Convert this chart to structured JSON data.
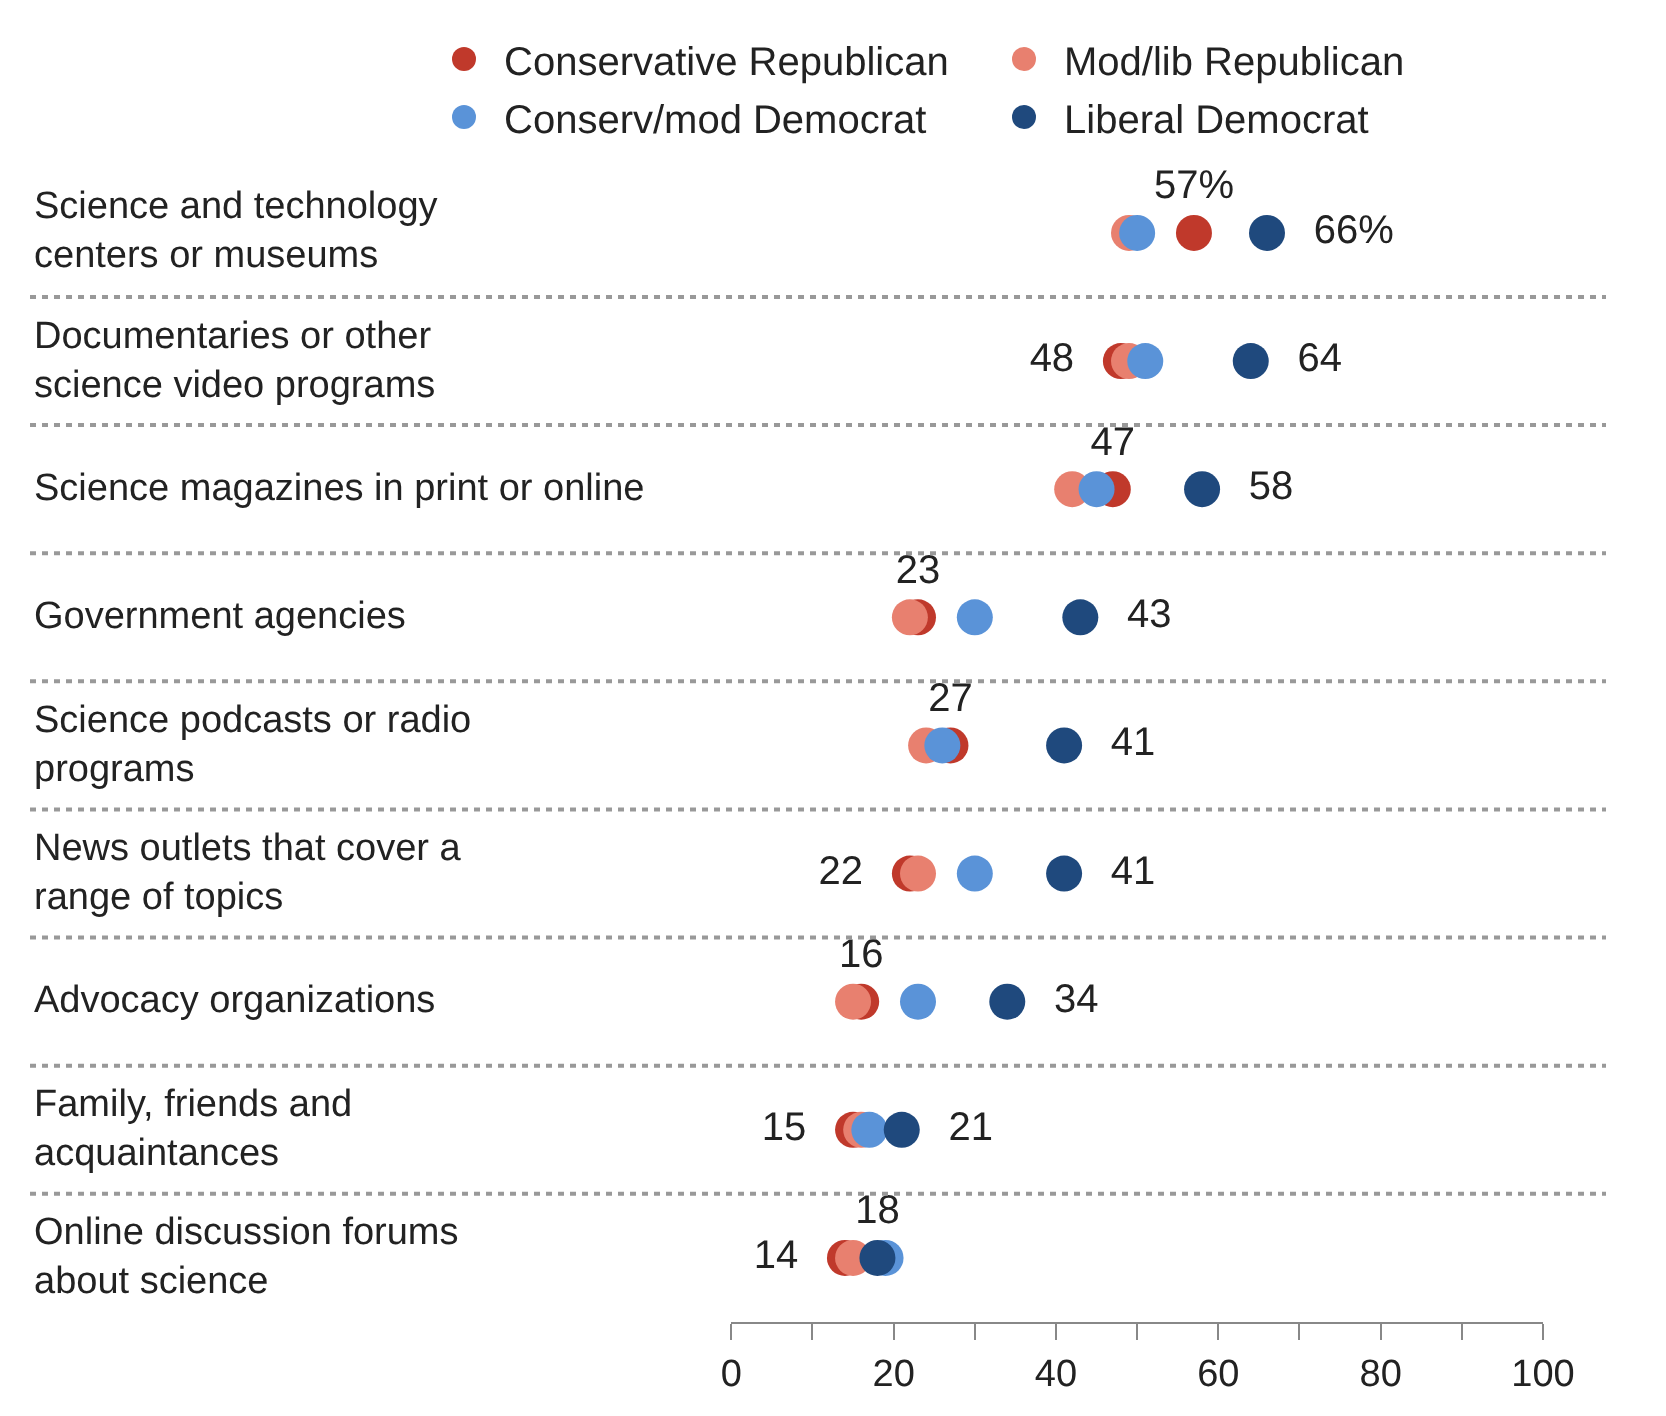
{
  "chart_data": {
    "type": "scatter",
    "categories": [
      "Science and technology\ncenters or museums",
      "Documentaries or other\nscience video programs",
      "Science magazines in print or online",
      "Government agencies",
      "Science podcasts or radio\nprograms",
      "News outlets that cover a\nrange of topics",
      "Advocacy organizations",
      "Family, friends and\nacquaintances",
      "Online discussion forums\nabout science"
    ],
    "series": [
      {
        "name": "Conservative Republican",
        "color": "#c0392b",
        "values": [
          57,
          48,
          47,
          23,
          27,
          22,
          16,
          15,
          14
        ],
        "value_labels": [
          "57%",
          "48",
          "47",
          "23",
          "27",
          "22",
          "16",
          "15",
          "14"
        ]
      },
      {
        "name": "Mod/lib Republican",
        "color": "#e8806f",
        "values": [
          49,
          49,
          42,
          22,
          24,
          23,
          15,
          16,
          15
        ]
      },
      {
        "name": "Conserv/mod Democrat",
        "color": "#5a93d8",
        "values": [
          50,
          51,
          45,
          30,
          26,
          30,
          23,
          17,
          19
        ]
      },
      {
        "name": "Liberal Democrat",
        "color": "#1f497d",
        "values": [
          66,
          64,
          58,
          43,
          41,
          41,
          34,
          21,
          18
        ],
        "value_labels": [
          "66%",
          "64",
          "58",
          "43",
          "41",
          "41",
          "34",
          "21",
          "18"
        ]
      }
    ],
    "xlim": [
      0,
      100
    ],
    "xticks": [
      0,
      {
        "value": 10,
        "label": null
      },
      20,
      {
        "value": 30,
        "label": null
      },
      40,
      {
        "value": 50,
        "label": null
      },
      60,
      {
        "value": 70,
        "label": null
      },
      80,
      {
        "value": 90,
        "label": null
      },
      100
    ],
    "orientation": "horizontal",
    "marker": "circle",
    "legend": "top"
  }
}
